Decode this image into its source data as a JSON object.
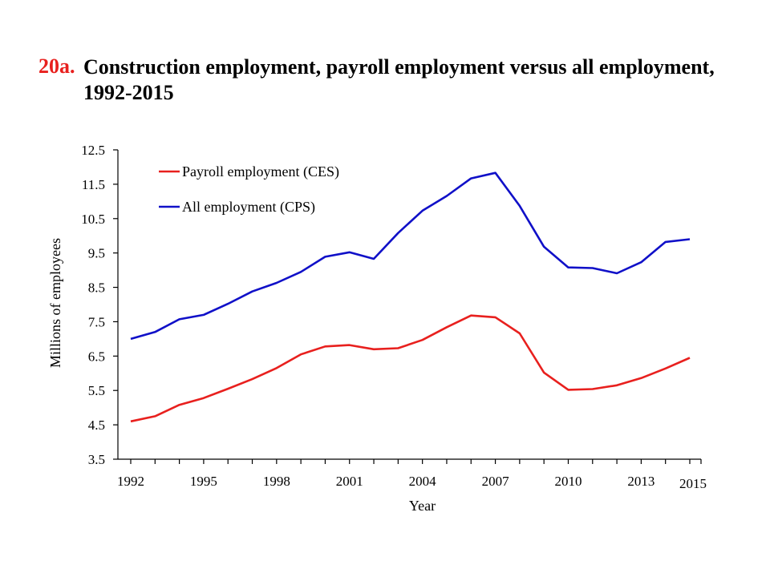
{
  "title": {
    "number": "20a.",
    "text": "Construction employment, payroll employment versus all employment, 1992-2015"
  },
  "chart_data": {
    "type": "line",
    "xlabel": "Year",
    "ylabel": "Millions of employees",
    "ylim": [
      3.5,
      12.5
    ],
    "xlim": [
      1992,
      2015
    ],
    "y_ticks": [
      "3.5",
      "4.5",
      "5.5",
      "6.5",
      "7.5",
      "8.5",
      "9.5",
      "10.5",
      "11.5",
      "12.5"
    ],
    "x_tick_labels": [
      "1992",
      "1995",
      "1998",
      "2001",
      "2004",
      "2007",
      "2010",
      "2013",
      "2015"
    ],
    "legend_position": "top-left",
    "grid": false,
    "x": [
      1992,
      1993,
      1994,
      1995,
      1996,
      1997,
      1998,
      1999,
      2000,
      2001,
      2002,
      2003,
      2004,
      2005,
      2006,
      2007,
      2008,
      2009,
      2010,
      2011,
      2012,
      2013,
      2014,
      2015
    ],
    "series": [
      {
        "name": "Payroll employment (CES)",
        "color": "#e8201e",
        "values": [
          4.6,
          4.75,
          5.08,
          5.28,
          5.55,
          5.83,
          6.15,
          6.55,
          6.78,
          6.82,
          6.7,
          6.73,
          6.97,
          7.34,
          7.68,
          7.63,
          7.16,
          6.02,
          5.52,
          5.54,
          5.65,
          5.86,
          6.14,
          6.45
        ]
      },
      {
        "name": "All employment (CPS)",
        "color": "#1010c8",
        "values": [
          7.0,
          7.2,
          7.57,
          7.7,
          8.02,
          8.38,
          8.63,
          8.95,
          9.39,
          9.52,
          9.33,
          10.08,
          10.73,
          11.16,
          11.67,
          11.83,
          10.87,
          9.68,
          9.08,
          9.06,
          8.91,
          9.23,
          9.82,
          9.9
        ]
      }
    ]
  }
}
